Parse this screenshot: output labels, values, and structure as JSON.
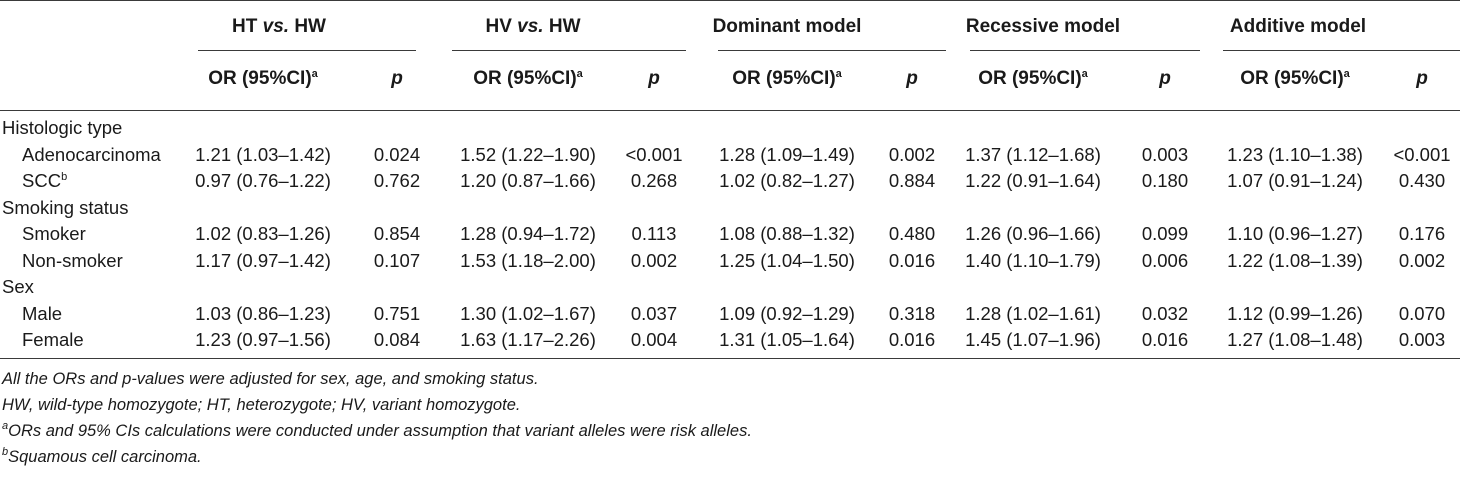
{
  "table": {
    "groups": [
      {
        "pre": "HT ",
        "em": "vs.",
        "post": " HW"
      },
      {
        "pre": "HV ",
        "em": "vs.",
        "post": " HW"
      },
      {
        "pre": "Dominant model",
        "em": "",
        "post": ""
      },
      {
        "pre": "Recessive model",
        "em": "",
        "post": ""
      },
      {
        "pre": "Additive model",
        "em": "",
        "post": ""
      }
    ],
    "sub_or": "OR (95%CI)",
    "sub_or_sup": "a",
    "sub_p": "p",
    "sections": [
      {
        "title": "Histologic type",
        "rows": [
          {
            "label": "Adenocarcinoma",
            "sup": "",
            "cells": [
              "1.21 (1.03–1.42)",
              "0.024",
              "1.52 (1.22–1.90)",
              "<0.001",
              "1.28 (1.09–1.49)",
              "0.002",
              "1.37 (1.12–1.68)",
              "0.003",
              "1.23 (1.10–1.38)",
              "<0.001"
            ]
          },
          {
            "label": "SCC",
            "sup": "b",
            "cells": [
              "0.97 (0.76–1.22)",
              "0.762",
              "1.20 (0.87–1.66)",
              "0.268",
              "1.02 (0.82–1.27)",
              "0.884",
              "1.22 (0.91–1.64)",
              "0.180",
              "1.07 (0.91–1.24)",
              "0.430"
            ]
          }
        ]
      },
      {
        "title": "Smoking status",
        "rows": [
          {
            "label": "Smoker",
            "sup": "",
            "cells": [
              "1.02 (0.83–1.26)",
              "0.854",
              "1.28 (0.94–1.72)",
              "0.113",
              "1.08 (0.88–1.32)",
              "0.480",
              "1.26 (0.96–1.66)",
              "0.099",
              "1.10 (0.96–1.27)",
              "0.176"
            ]
          },
          {
            "label": "Non-smoker",
            "sup": "",
            "cells": [
              "1.17 (0.97–1.42)",
              "0.107",
              "1.53 (1.18–2.00)",
              "0.002",
              "1.25 (1.04–1.50)",
              "0.016",
              "1.40 (1.10–1.79)",
              "0.006",
              "1.22 (1.08–1.39)",
              "0.002"
            ]
          }
        ]
      },
      {
        "title": "Sex",
        "rows": [
          {
            "label": "Male",
            "sup": "",
            "cells": [
              "1.03 (0.86–1.23)",
              "0.751",
              "1.30 (1.02–1.67)",
              "0.037",
              "1.09 (0.92–1.29)",
              "0.318",
              "1.28 (1.02–1.61)",
              "0.032",
              "1.12 (0.99–1.26)",
              "0.070"
            ]
          },
          {
            "label": "Female",
            "sup": "",
            "cells": [
              "1.23 (0.97–1.56)",
              "0.084",
              "1.63 (1.17–2.26)",
              "0.004",
              "1.31 (1.05–1.64)",
              "0.016",
              "1.45 (1.07–1.96)",
              "0.016",
              "1.27 (1.08–1.48)",
              "0.003"
            ]
          }
        ]
      }
    ]
  },
  "footnotes": [
    {
      "sup": "",
      "text": "All the ORs and p-values were adjusted for sex, age, and smoking status."
    },
    {
      "sup": "",
      "text": "HW, wild-type homozygote; HT, heterozygote; HV, variant homozygote."
    },
    {
      "sup": "a",
      "text": "ORs and 95% CIs calculations were conducted under assumption that variant alleles were risk alleles."
    },
    {
      "sup": "b",
      "text": "Squamous cell carcinoma."
    }
  ]
}
